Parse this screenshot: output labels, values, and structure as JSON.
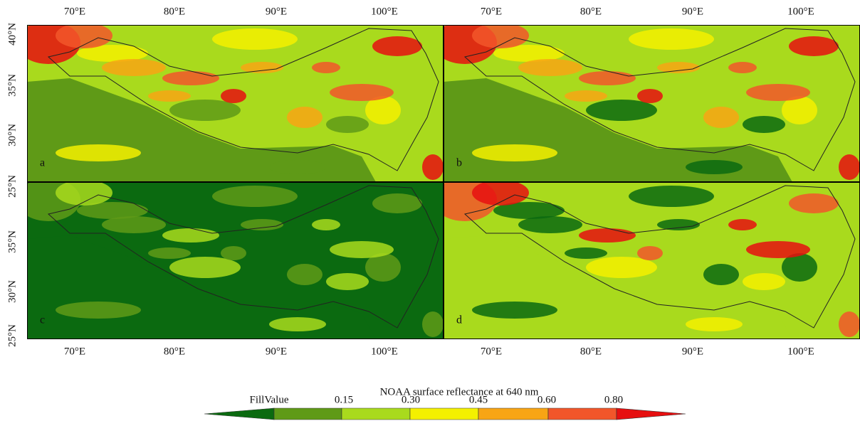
{
  "map_figure": {
    "top_lon_labels": [
      "70°E",
      "80°E",
      "90°E",
      "100°E"
    ],
    "bottom_lon_labels": [
      "70°E",
      "80°E",
      "90°E",
      "100°E"
    ],
    "lat_labels": [
      "40°N",
      "35°N",
      "30°N",
      "25°N",
      "35°N",
      "30°N",
      "25°N"
    ],
    "panels": [
      {
        "letter": "a"
      },
      {
        "letter": "b"
      },
      {
        "letter": "c"
      },
      {
        "letter": "d"
      }
    ],
    "colorbar": {
      "title": "NOAA surface reflectance at 640 nm",
      "labels": [
        "FillValue",
        "0.15",
        "0.30",
        "0.45",
        "0.60",
        "0.80"
      ],
      "colors": [
        "#0b6a10",
        "#5f9a17",
        "#a9da1d",
        "#f4f000",
        "#f8a514",
        "#f2562a",
        "#e60f10"
      ]
    }
  }
}
